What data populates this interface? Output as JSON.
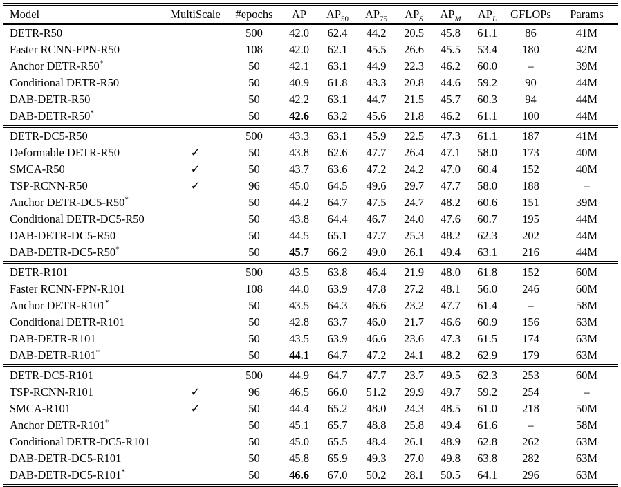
{
  "page": {
    "background": "#ffffff",
    "text_color": "#000000"
  },
  "table": {
    "checkmark": "✓",
    "dash": "–",
    "columns": [
      {
        "key": "model",
        "label": "Model"
      },
      {
        "key": "multiscale",
        "label": "MultiScale"
      },
      {
        "key": "epochs",
        "label": "#epochs"
      },
      {
        "key": "ap",
        "label": "AP"
      },
      {
        "key": "ap50",
        "label": "AP",
        "sub": "50"
      },
      {
        "key": "ap75",
        "label": "AP",
        "sub": "75"
      },
      {
        "key": "ap_s",
        "label": "AP",
        "sub": "S",
        "sub_italic": true
      },
      {
        "key": "ap_m",
        "label": "AP",
        "sub": "M",
        "sub_italic": true
      },
      {
        "key": "ap_l",
        "label": "AP",
        "sub": "L",
        "sub_italic": true
      },
      {
        "key": "gflops",
        "label": "GFLOPs"
      },
      {
        "key": "params",
        "label": "Params"
      }
    ],
    "groups": [
      {
        "rows": [
          {
            "model": "DETR-R50",
            "multiscale": "",
            "epochs": "500",
            "ap": "42.0",
            "ap50": "62.4",
            "ap75": "44.2",
            "ap_s": "20.5",
            "ap_m": "45.8",
            "ap_l": "61.1",
            "gflops": "86",
            "params": "41M"
          },
          {
            "model": "Faster RCNN-FPN-R50",
            "multiscale": "",
            "epochs": "108",
            "ap": "42.0",
            "ap50": "62.1",
            "ap75": "45.5",
            "ap_s": "26.6",
            "ap_m": "45.5",
            "ap_l": "53.4",
            "gflops": "180",
            "params": "42M"
          },
          {
            "model": {
              "text": "Anchor DETR-R50",
              "sup": "*"
            },
            "multiscale": "",
            "epochs": "50",
            "ap": "42.1",
            "ap50": "63.1",
            "ap75": "44.9",
            "ap_s": "22.3",
            "ap_m": "46.2",
            "ap_l": "60.0",
            "gflops": "–",
            "params": "39M"
          },
          {
            "model": "Conditional DETR-R50",
            "multiscale": "",
            "epochs": "50",
            "ap": "40.9",
            "ap50": "61.8",
            "ap75": "43.3",
            "ap_s": "20.8",
            "ap_m": "44.6",
            "ap_l": "59.2",
            "gflops": "90",
            "params": "44M"
          },
          {
            "model": "DAB-DETR-R50",
            "multiscale": "",
            "epochs": "50",
            "ap": "42.2",
            "ap50": "63.1",
            "ap75": "44.7",
            "ap_s": "21.5",
            "ap_m": "45.7",
            "ap_l": "60.3",
            "gflops": "94",
            "params": "44M"
          },
          {
            "model": {
              "text": "DAB-DETR-R50",
              "sup": "*"
            },
            "multiscale": "",
            "epochs": "50",
            "ap": {
              "text": "42.6",
              "bold": true
            },
            "ap50": "63.2",
            "ap75": "45.6",
            "ap_s": "21.8",
            "ap_m": "46.2",
            "ap_l": "61.1",
            "gflops": "100",
            "params": "44M"
          }
        ]
      },
      {
        "rows": [
          {
            "model": "DETR-DC5-R50",
            "multiscale": "",
            "epochs": "500",
            "ap": "43.3",
            "ap50": "63.1",
            "ap75": "45.9",
            "ap_s": "22.5",
            "ap_m": "47.3",
            "ap_l": "61.1",
            "gflops": "187",
            "params": "41M"
          },
          {
            "model": "Deformable DETR-R50",
            "multiscale": "✓",
            "epochs": "50",
            "ap": "43.8",
            "ap50": "62.6",
            "ap75": "47.7",
            "ap_s": "26.4",
            "ap_m": "47.1",
            "ap_l": "58.0",
            "gflops": "173",
            "params": "40M"
          },
          {
            "model": "SMCA-R50",
            "multiscale": "✓",
            "epochs": "50",
            "ap": "43.7",
            "ap50": "63.6",
            "ap75": "47.2",
            "ap_s": "24.2",
            "ap_m": "47.0",
            "ap_l": "60.4",
            "gflops": "152",
            "params": "40M"
          },
          {
            "model": "TSP-RCNN-R50",
            "multiscale": "✓",
            "epochs": "96",
            "ap": "45.0",
            "ap50": "64.5",
            "ap75": "49.6",
            "ap_s": "29.7",
            "ap_m": "47.7",
            "ap_l": "58.0",
            "gflops": "188",
            "params": "–"
          },
          {
            "model": {
              "text": "Anchor DETR-DC5-R50",
              "sup": "*"
            },
            "multiscale": "",
            "epochs": "50",
            "ap": "44.2",
            "ap50": "64.7",
            "ap75": "47.5",
            "ap_s": "24.7",
            "ap_m": "48.2",
            "ap_l": "60.6",
            "gflops": "151",
            "params": "39M"
          },
          {
            "model": "Conditional DETR-DC5-R50",
            "multiscale": "",
            "epochs": "50",
            "ap": "43.8",
            "ap50": "64.4",
            "ap75": "46.7",
            "ap_s": "24.0",
            "ap_m": "47.6",
            "ap_l": "60.7",
            "gflops": "195",
            "params": "44M"
          },
          {
            "model": "DAB-DETR-DC5-R50",
            "multiscale": "",
            "epochs": "50",
            "ap": "44.5",
            "ap50": "65.1",
            "ap75": "47.7",
            "ap_s": "25.3",
            "ap_m": "48.2",
            "ap_l": "62.3",
            "gflops": "202",
            "params": "44M"
          },
          {
            "model": {
              "text": "DAB-DETR-DC5-R50",
              "sup": "*"
            },
            "multiscale": "",
            "epochs": "50",
            "ap": {
              "text": "45.7",
              "bold": true
            },
            "ap50": "66.2",
            "ap75": "49.0",
            "ap_s": "26.1",
            "ap_m": "49.4",
            "ap_l": "63.1",
            "gflops": "216",
            "params": "44M"
          }
        ]
      },
      {
        "rows": [
          {
            "model": "DETR-R101",
            "multiscale": "",
            "epochs": "500",
            "ap": "43.5",
            "ap50": "63.8",
            "ap75": "46.4",
            "ap_s": "21.9",
            "ap_m": "48.0",
            "ap_l": "61.8",
            "gflops": "152",
            "params": "60M"
          },
          {
            "model": "Faster RCNN-FPN-R101",
            "multiscale": "",
            "epochs": "108",
            "ap": "44.0",
            "ap50": "63.9",
            "ap75": "47.8",
            "ap_s": "27.2",
            "ap_m": "48.1",
            "ap_l": "56.0",
            "gflops": "246",
            "params": "60M"
          },
          {
            "model": {
              "text": "Anchor DETR-R101",
              "sup": "*"
            },
            "multiscale": "",
            "epochs": "50",
            "ap": "43.5",
            "ap50": "64.3",
            "ap75": "46.6",
            "ap_s": "23.2",
            "ap_m": "47.7",
            "ap_l": "61.4",
            "gflops": "–",
            "params": "58M"
          },
          {
            "model": "Conditional DETR-R101",
            "multiscale": "",
            "epochs": "50",
            "ap": "42.8",
            "ap50": "63.7",
            "ap75": "46.0",
            "ap_s": "21.7",
            "ap_m": "46.6",
            "ap_l": "60.9",
            "gflops": "156",
            "params": "63M"
          },
          {
            "model": "DAB-DETR-R101",
            "multiscale": "",
            "epochs": "50",
            "ap": "43.5",
            "ap50": "63.9",
            "ap75": "46.6",
            "ap_s": "23.6",
            "ap_m": "47.3",
            "ap_l": "61.5",
            "gflops": "174",
            "params": "63M"
          },
          {
            "model": {
              "text": "DAB-DETR-R101",
              "sup": "*"
            },
            "multiscale": "",
            "epochs": "50",
            "ap": {
              "text": "44.1",
              "bold": true
            },
            "ap50": "64.7",
            "ap75": "47.2",
            "ap_s": "24.1",
            "ap_m": "48.2",
            "ap_l": "62.9",
            "gflops": "179",
            "params": "63M"
          }
        ]
      },
      {
        "rows": [
          {
            "model": "DETR-DC5-R101",
            "multiscale": "",
            "epochs": "500",
            "ap": "44.9",
            "ap50": "64.7",
            "ap75": "47.7",
            "ap_s": "23.7",
            "ap_m": "49.5",
            "ap_l": "62.3",
            "gflops": "253",
            "params": "60M"
          },
          {
            "model": "TSP-RCNN-R101",
            "multiscale": "✓",
            "epochs": "96",
            "ap": "46.5",
            "ap50": "66.0",
            "ap75": "51.2",
            "ap_s": "29.9",
            "ap_m": "49.7",
            "ap_l": "59.2",
            "gflops": "254",
            "params": "–"
          },
          {
            "model": "SMCA-R101",
            "multiscale": "✓",
            "epochs": "50",
            "ap": "44.4",
            "ap50": "65.2",
            "ap75": "48.0",
            "ap_s": "24.3",
            "ap_m": "48.5",
            "ap_l": "61.0",
            "gflops": "218",
            "params": "50M"
          },
          {
            "model": {
              "text": "Anchor DETR-R101",
              "sup": "*"
            },
            "multiscale": "",
            "epochs": "50",
            "ap": "45.1",
            "ap50": "65.7",
            "ap75": "48.8",
            "ap_s": "25.8",
            "ap_m": "49.4",
            "ap_l": "61.6",
            "gflops": "–",
            "params": "58M"
          },
          {
            "model": "Conditional DETR-DC5-R101",
            "multiscale": "",
            "epochs": "50",
            "ap": "45.0",
            "ap50": "65.5",
            "ap75": "48.4",
            "ap_s": "26.1",
            "ap_m": "48.9",
            "ap_l": "62.8",
            "gflops": "262",
            "params": "63M"
          },
          {
            "model": "DAB-DETR-DC5-R101",
            "multiscale": "",
            "epochs": "50",
            "ap": "45.8",
            "ap50": "65.9",
            "ap75": "49.3",
            "ap_s": "27.0",
            "ap_m": "49.8",
            "ap_l": "63.8",
            "gflops": "282",
            "params": "63M"
          },
          {
            "model": {
              "text": "DAB-DETR-DC5-R101",
              "sup": "*"
            },
            "multiscale": "",
            "epochs": "50",
            "ap": {
              "text": "46.6",
              "bold": true
            },
            "ap50": "67.0",
            "ap75": "50.2",
            "ap_s": "28.1",
            "ap_m": "50.5",
            "ap_l": "64.1",
            "gflops": "296",
            "params": "63M"
          }
        ]
      }
    ]
  }
}
